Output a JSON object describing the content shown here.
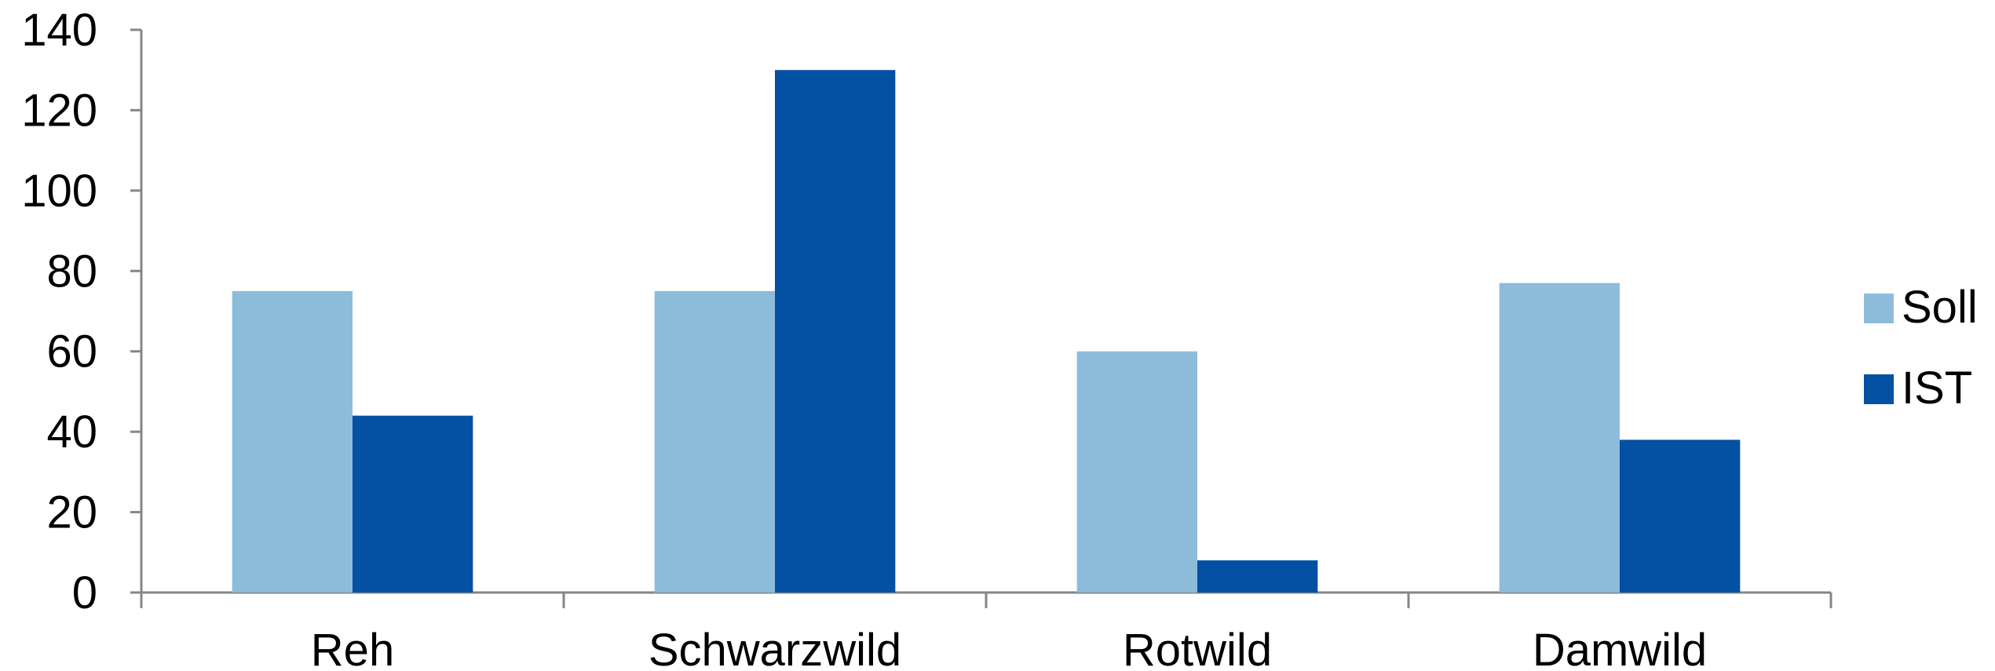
{
  "chart_data": {
    "type": "bar",
    "categories": [
      "Reh",
      "Schwarzwild",
      "Rotwild",
      "Damwild"
    ],
    "series": [
      {
        "name": "Soll",
        "values": [
          75,
          75,
          60,
          77
        ],
        "color": "#8dbcdb"
      },
      {
        "name": "IST",
        "values": [
          44,
          130,
          8,
          38
        ],
        "color": "#0450a2"
      }
    ],
    "yticks": [
      "0",
      "20",
      "40",
      "60",
      "80",
      "100",
      "120",
      "140"
    ],
    "ylim": [
      0,
      140
    ],
    "grid": false,
    "legend": "right"
  }
}
